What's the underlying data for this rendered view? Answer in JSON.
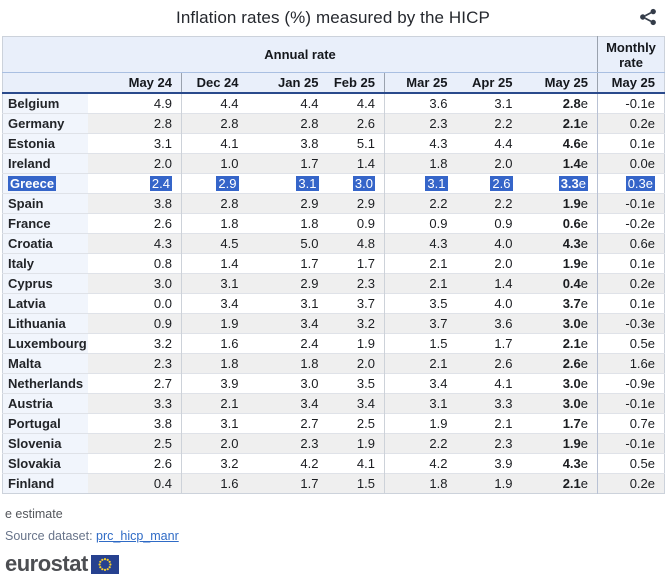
{
  "title": "Inflation rates (%) measured by the HICP",
  "icons": {
    "share": "share-icon",
    "eu_flag": "eu-flag-icon"
  },
  "colors": {
    "highlight_blue": "#3565c9",
    "header_bg": "#e9effa",
    "country_col_bg": "#f1f5fc",
    "alt_row_gray": "#efefef",
    "navy_border": "#2a4a8c",
    "link_blue": "#2f6bc6",
    "eu_flag_blue": "#26418f",
    "eu_star_yellow": "#f8d12e"
  },
  "footer": {
    "estimate_note": "e estimate",
    "source_label": "Source dataset:",
    "source_link": "prc_hicp_manr",
    "logo_text": "eurostat"
  },
  "chart_data": {
    "type": "table",
    "title": "Inflation rates (%) measured by the HICP",
    "group_headers": {
      "annual": "Annual rate",
      "monthly": "Monthly rate"
    },
    "annual_columns": [
      "May 24",
      "Dec 24",
      "Jan 25",
      "Feb 25",
      "Mar 25",
      "Apr 25",
      "May 25"
    ],
    "monthly_column": "May 25",
    "estimate_flag": "e",
    "rows": [
      {
        "country": "Belgium",
        "annual": [
          "4.9",
          "4.4",
          "4.4",
          "4.4",
          "3.6",
          "3.1",
          "2.8e"
        ],
        "monthly": "-0.1e",
        "highlighted": false
      },
      {
        "country": "Germany",
        "annual": [
          "2.8",
          "2.8",
          "2.8",
          "2.6",
          "2.3",
          "2.2",
          "2.1e"
        ],
        "monthly": "0.2e",
        "highlighted": false
      },
      {
        "country": "Estonia",
        "annual": [
          "3.1",
          "4.1",
          "3.8",
          "5.1",
          "4.3",
          "4.4",
          "4.6e"
        ],
        "monthly": "0.1e",
        "highlighted": false
      },
      {
        "country": "Ireland",
        "annual": [
          "2.0",
          "1.0",
          "1.7",
          "1.4",
          "1.8",
          "2.0",
          "1.4e"
        ],
        "monthly": "0.0e",
        "highlighted": false
      },
      {
        "country": "Greece",
        "annual": [
          "2.4",
          "2.9",
          "3.1",
          "3.0",
          "3.1",
          "2.6",
          "3.3e"
        ],
        "monthly": "0.3e",
        "highlighted": true
      },
      {
        "country": "Spain",
        "annual": [
          "3.8",
          "2.8",
          "2.9",
          "2.9",
          "2.2",
          "2.2",
          "1.9e"
        ],
        "monthly": "-0.1e",
        "highlighted": false
      },
      {
        "country": "France",
        "annual": [
          "2.6",
          "1.8",
          "1.8",
          "0.9",
          "0.9",
          "0.9",
          "0.6e"
        ],
        "monthly": "-0.2e",
        "highlighted": false
      },
      {
        "country": "Croatia",
        "annual": [
          "4.3",
          "4.5",
          "5.0",
          "4.8",
          "4.3",
          "4.0",
          "4.3e"
        ],
        "monthly": "0.6e",
        "highlighted": false
      },
      {
        "country": "Italy",
        "annual": [
          "0.8",
          "1.4",
          "1.7",
          "1.7",
          "2.1",
          "2.0",
          "1.9e"
        ],
        "monthly": "0.1e",
        "highlighted": false
      },
      {
        "country": "Cyprus",
        "annual": [
          "3.0",
          "3.1",
          "2.9",
          "2.3",
          "2.1",
          "1.4",
          "0.4e"
        ],
        "monthly": "0.2e",
        "highlighted": false
      },
      {
        "country": "Latvia",
        "annual": [
          "0.0",
          "3.4",
          "3.1",
          "3.7",
          "3.5",
          "4.0",
          "3.7e"
        ],
        "monthly": "0.1e",
        "highlighted": false
      },
      {
        "country": "Lithuania",
        "annual": [
          "0.9",
          "1.9",
          "3.4",
          "3.2",
          "3.7",
          "3.6",
          "3.0e"
        ],
        "monthly": "-0.3e",
        "highlighted": false
      },
      {
        "country": "Luxembourg",
        "annual": [
          "3.2",
          "1.6",
          "2.4",
          "1.9",
          "1.5",
          "1.7",
          "2.1e"
        ],
        "monthly": "0.5e",
        "highlighted": false
      },
      {
        "country": "Malta",
        "annual": [
          "2.3",
          "1.8",
          "1.8",
          "2.0",
          "2.1",
          "2.6",
          "2.6e"
        ],
        "monthly": "1.6e",
        "highlighted": false
      },
      {
        "country": "Netherlands",
        "annual": [
          "2.7",
          "3.9",
          "3.0",
          "3.5",
          "3.4",
          "4.1",
          "3.0e"
        ],
        "monthly": "-0.9e",
        "highlighted": false
      },
      {
        "country": "Austria",
        "annual": [
          "3.3",
          "2.1",
          "3.4",
          "3.4",
          "3.1",
          "3.3",
          "3.0e"
        ],
        "monthly": "-0.1e",
        "highlighted": false
      },
      {
        "country": "Portugal",
        "annual": [
          "3.8",
          "3.1",
          "2.7",
          "2.5",
          "1.9",
          "2.1",
          "1.7e"
        ],
        "monthly": "0.7e",
        "highlighted": false
      },
      {
        "country": "Slovenia",
        "annual": [
          "2.5",
          "2.0",
          "2.3",
          "1.9",
          "2.2",
          "2.3",
          "1.9e"
        ],
        "monthly": "-0.1e",
        "highlighted": false
      },
      {
        "country": "Slovakia",
        "annual": [
          "2.6",
          "3.2",
          "4.2",
          "4.1",
          "4.2",
          "3.9",
          "4.3e"
        ],
        "monthly": "0.5e",
        "highlighted": false
      },
      {
        "country": "Finland",
        "annual": [
          "0.4",
          "1.6",
          "1.7",
          "1.5",
          "1.8",
          "1.9",
          "2.1e"
        ],
        "monthly": "0.2e",
        "highlighted": false
      }
    ]
  }
}
